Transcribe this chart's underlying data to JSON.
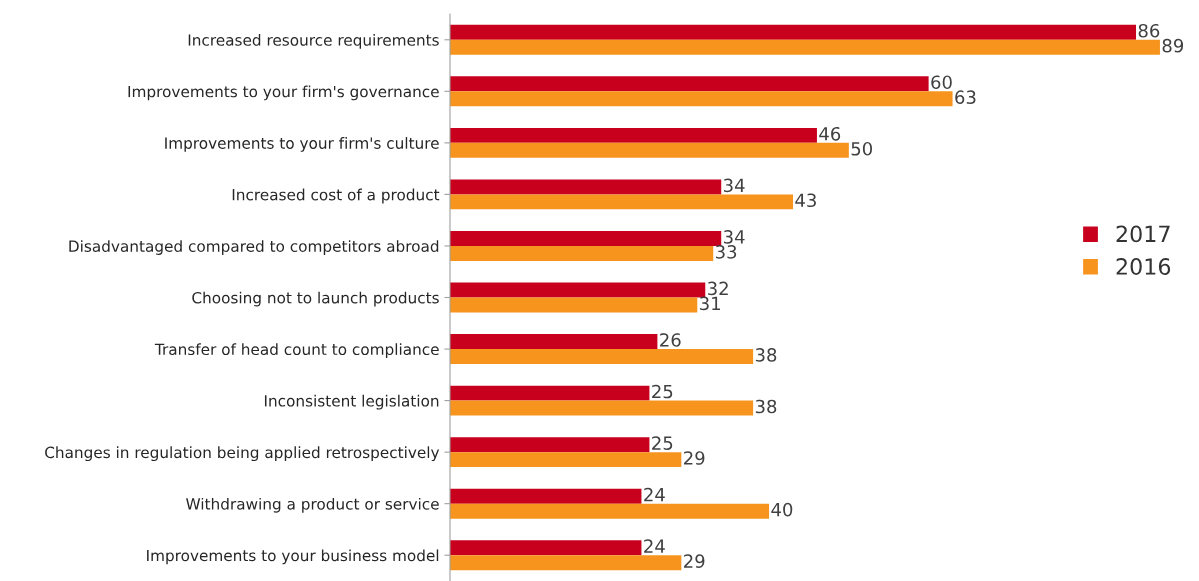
{
  "chart_data": {
    "type": "bar",
    "orientation": "horizontal",
    "data_labels": true,
    "legend": "right",
    "grid": false,
    "categories": [
      "Increased resource requirements",
      "Improvements to your firm's governance",
      "Improvements to your firm's culture",
      "Increased cost of a product",
      "Disadvantaged compared to competitors abroad",
      "Choosing not to launch products",
      "Transfer of head count to compliance",
      "Inconsistent legislation",
      "Changes in regulation being applied retrospectively",
      "Withdrawing a product or service",
      "Improvements to your business model"
    ],
    "series": [
      {
        "name": "2017",
        "color": "#c8001e",
        "values": [
          86,
          60,
          46,
          34,
          34,
          32,
          26,
          25,
          25,
          24,
          24
        ]
      },
      {
        "name": "2016",
        "color": "#f7941d",
        "values": [
          89,
          63,
          50,
          43,
          33,
          31,
          38,
          38,
          29,
          40,
          29
        ]
      }
    ]
  }
}
